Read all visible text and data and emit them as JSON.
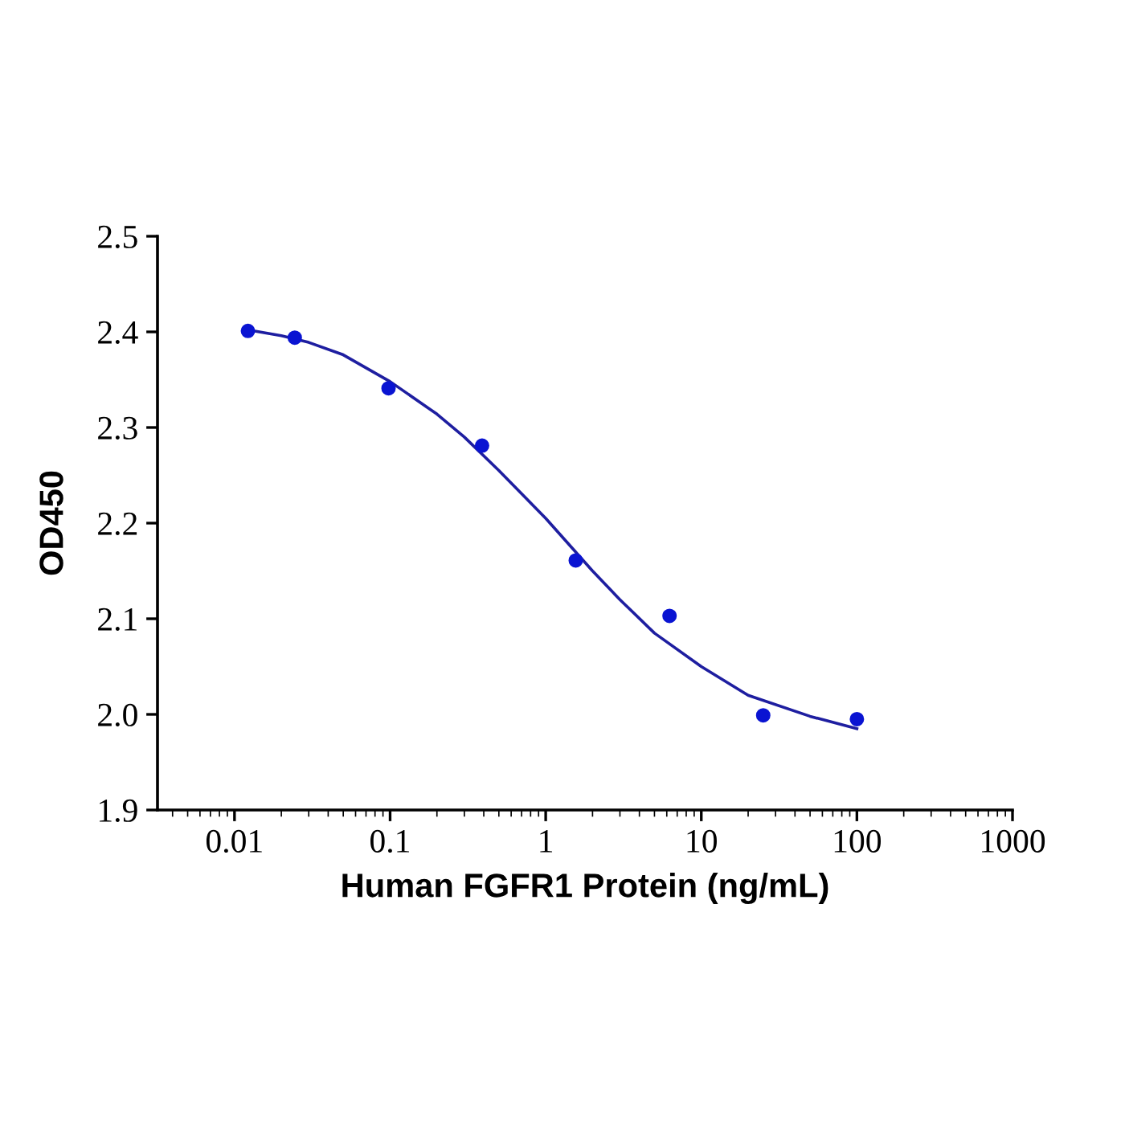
{
  "chart_data": {
    "type": "scatter",
    "xlabel": "Human FGFR1 Protein (ng/mL)",
    "ylabel": "OD450",
    "log": "x",
    "xlim": [
      0.0032,
      1000
    ],
    "xticks": [
      0.01,
      0.1,
      1,
      10,
      100,
      1000
    ],
    "ylim": [
      1.9,
      2.5
    ],
    "yticks": [
      1.9,
      {
        "value": 2.0,
        "label": "2.0"
      },
      2.1,
      2.2,
      2.3,
      2.4,
      2.5
    ],
    "grid": false,
    "legend": false,
    "series": [
      {
        "marker": "circle",
        "color": "#0a14d2",
        "x": [
          0.0122,
          0.0244,
          0.0977,
          0.39,
          1.56,
          6.25,
          25,
          100
        ],
        "values": [
          2.401,
          2.394,
          2.341,
          2.281,
          2.161,
          2.103,
          1.999,
          1.995
        ]
      },
      {
        "type": "line",
        "marker": "none",
        "color": "#1e1ea0",
        "line_style": "solid",
        "x": [
          0.0122,
          0.02,
          0.03,
          0.05,
          0.1,
          0.2,
          0.3,
          0.5,
          1,
          2,
          3,
          5,
          10,
          20,
          50,
          100
        ],
        "values": [
          2.402,
          2.396,
          2.389,
          2.376,
          2.348,
          2.314,
          2.29,
          2.255,
          2.205,
          2.15,
          2.12,
          2.085,
          2.05,
          2.02,
          1.998,
          1.985
        ]
      }
    ]
  }
}
